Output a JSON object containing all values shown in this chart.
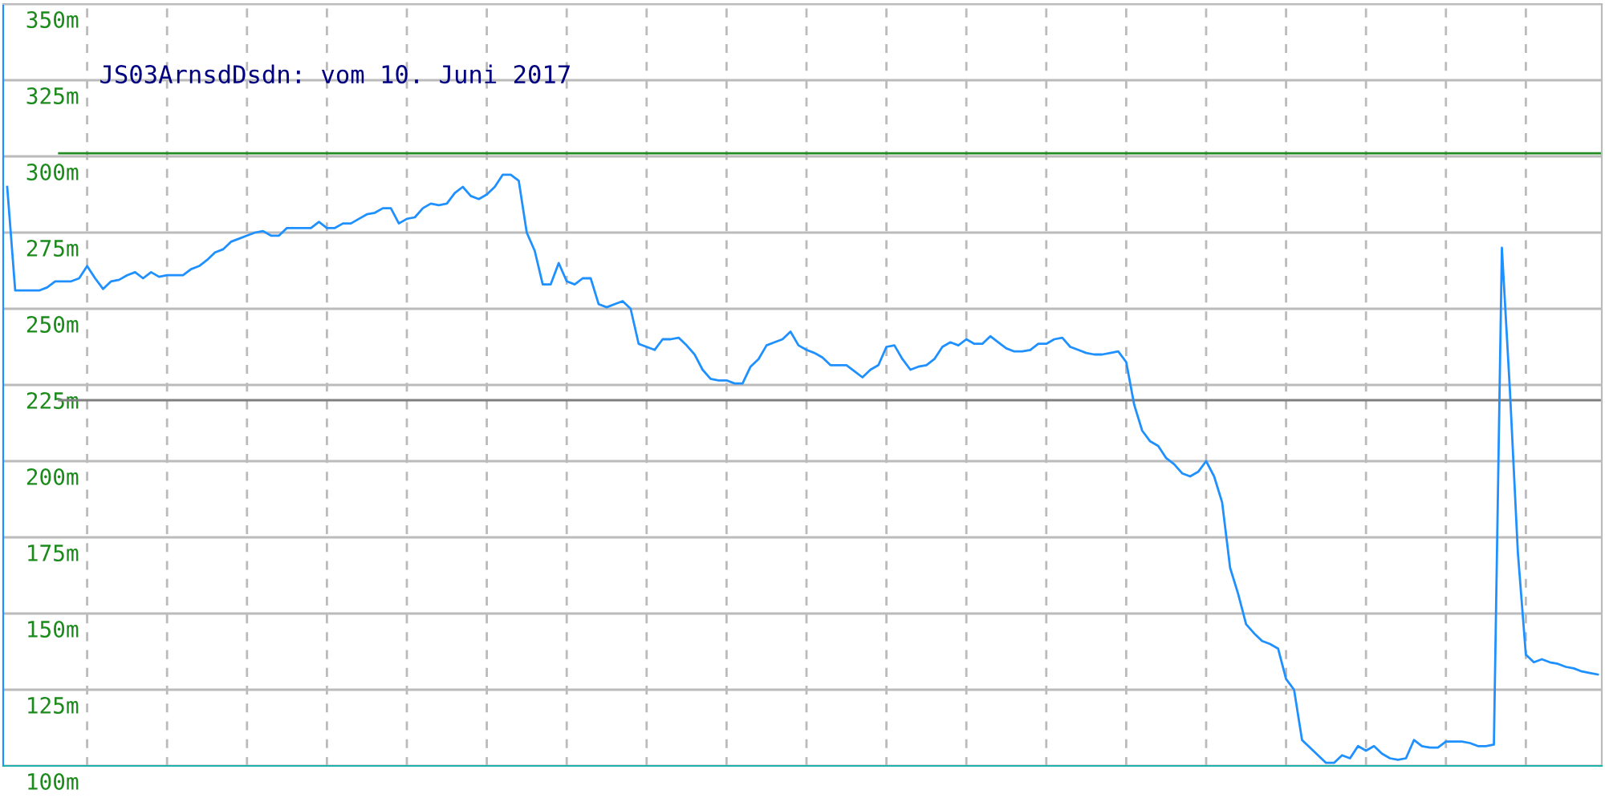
{
  "chart_data": {
    "type": "line",
    "title": "JS03ArnsdDsdn: vom 10. Juni 2017",
    "categories": [
      null,
      null,
      null,
      null,
      null,
      null,
      null,
      null,
      null,
      null,
      null,
      null,
      null,
      null,
      null,
      null,
      null,
      null,
      null,
      null,
      null,
      null,
      null,
      null,
      null,
      null,
      null,
      null,
      null,
      null,
      null,
      null,
      null,
      null,
      null,
      null,
      null,
      null,
      null,
      null,
      null,
      null,
      null,
      null,
      null,
      null,
      null,
      null,
      null,
      null,
      null,
      null,
      null,
      null,
      null,
      null,
      null,
      null,
      null,
      null,
      null,
      null,
      null,
      null,
      null,
      null,
      null,
      null,
      null,
      null,
      null,
      null,
      null,
      null,
      null,
      null,
      null,
      null,
      null,
      null,
      null,
      null,
      null,
      null,
      null,
      null,
      null,
      null,
      null,
      null,
      null,
      null,
      null,
      null,
      null,
      null,
      null,
      null,
      null,
      null,
      null,
      null,
      null,
      null,
      null,
      null,
      null,
      null,
      null,
      null,
      null,
      null,
      null,
      null,
      null,
      null,
      null,
      null,
      null,
      null,
      null,
      null,
      null,
      null,
      null,
      null,
      null,
      null,
      null,
      null,
      null,
      null,
      null,
      null,
      null,
      null,
      null,
      null,
      null,
      null,
      null,
      null,
      null,
      null,
      null,
      null,
      null,
      null,
      null,
      null,
      null,
      null,
      null,
      null,
      null,
      null,
      null,
      null,
      null,
      null,
      null,
      null,
      null,
      null,
      null,
      null,
      null,
      null,
      null,
      null,
      null,
      null,
      null,
      null,
      null,
      null,
      null,
      null,
      null,
      null,
      null,
      null,
      null,
      null,
      null,
      null,
      null,
      null,
      null,
      null,
      null,
      null,
      null,
      null,
      null,
      null,
      null,
      null,
      null,
      null
    ],
    "series": [
      {
        "color": "#1e90ff",
        "values": [
          290,
          256,
          256,
          256,
          256,
          257,
          259,
          259,
          259,
          260,
          264,
          260,
          256.5,
          259,
          259.5,
          261,
          262,
          260,
          262,
          260.5,
          261,
          261,
          261,
          263,
          264,
          266,
          268.5,
          269.5,
          272,
          273,
          274,
          275,
          275.5,
          274,
          274,
          276.5,
          276.5,
          276.5,
          276.5,
          278.5,
          276.5,
          276.5,
          278,
          278,
          279.5,
          281,
          281.5,
          283,
          283,
          278,
          279.5,
          280,
          283,
          284.5,
          284,
          284.5,
          288,
          290,
          287,
          286,
          287.5,
          290,
          294,
          294,
          292,
          275,
          269,
          258,
          258,
          265,
          259,
          258,
          260,
          260,
          251.5,
          250.5,
          251.5,
          252.5,
          250,
          238.5,
          237.5,
          236.5,
          240,
          240,
          240.5,
          238,
          235,
          230,
          227,
          226.5,
          226.5,
          225.5,
          225.5,
          231,
          233.5,
          238,
          239,
          240,
          242.5,
          238,
          236.5,
          235.5,
          234,
          231.5,
          231.5,
          231.5,
          229.5,
          227.5,
          230,
          231.5,
          237.5,
          238,
          233.5,
          230,
          231,
          231.5,
          233.5,
          237.5,
          239,
          238,
          240,
          238.5,
          238.5,
          241,
          239,
          237,
          236,
          236,
          236.5,
          238.5,
          238.5,
          240,
          240.5,
          237.5,
          236.5,
          235.5,
          235,
          235,
          235.5,
          236,
          232.5,
          218.5,
          210,
          206.5,
          205,
          201,
          199,
          196,
          195,
          196.5,
          200,
          195,
          186.5,
          165,
          156.5,
          146.5,
          143.5,
          141,
          140,
          138.5,
          128.5,
          125,
          108.5,
          106,
          103.5,
          101,
          101,
          103.5,
          102.5,
          106.5,
          105,
          106.5,
          104,
          102.5,
          102,
          102.5,
          108.5,
          106.5,
          106,
          106,
          108,
          108,
          108,
          107.5,
          106.5,
          106.5,
          107,
          270,
          223.5,
          170,
          136.5,
          134,
          135,
          134,
          133.5,
          132.5,
          132,
          131,
          130.5,
          130
        ]
      }
    ],
    "ylim": [
      100,
      350
    ],
    "yticks": [
      {
        "value": 100,
        "label": "100m"
      },
      {
        "value": 125,
        "label": "125m"
      },
      {
        "value": 150,
        "label": "150m"
      },
      {
        "value": 175,
        "label": "175m"
      },
      {
        "value": 200,
        "label": "200m"
      },
      {
        "value": 225,
        "label": "225m"
      },
      {
        "value": 250,
        "label": "250m"
      },
      {
        "value": 275,
        "label": "275m"
      },
      {
        "value": 300,
        "label": "300m"
      },
      {
        "value": 325,
        "label": "325m"
      },
      {
        "value": 350,
        "label": "350m"
      }
    ],
    "ref_lines": [
      {
        "axis": "y",
        "value": 301,
        "color": "#228b22"
      },
      {
        "axis": "y",
        "value": 220,
        "color": "#808080"
      }
    ],
    "grid": true,
    "tick_labels": "y"
  }
}
